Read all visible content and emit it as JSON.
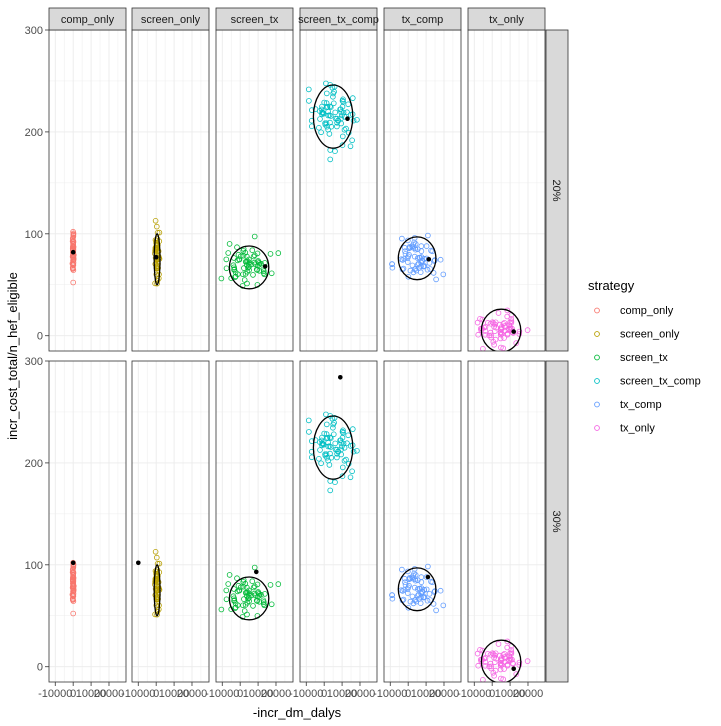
{
  "chart_data": {
    "type": "scatter",
    "xlabel": "-incr_dm_dalys",
    "ylabel": "incr_cost_total/n_hef_eligible",
    "ylim": [
      -15,
      300
    ],
    "yticks": [
      0,
      100,
      200,
      300
    ],
    "xlim": [
      -13500,
      29500
    ],
    "xticks": [
      -10000,
      0,
      10000,
      20000
    ],
    "xtick_labels": [
      "-10000",
      "0",
      "10000",
      "20000"
    ],
    "grid": true,
    "legend": {
      "title": "strategy",
      "position": "right",
      "entries": [
        {
          "label": "comp_only",
          "color": "#F8766D"
        },
        {
          "label": "screen_only",
          "color": "#B79F00"
        },
        {
          "label": "screen_tx",
          "color": "#00BA38"
        },
        {
          "label": "screen_tx_comp",
          "color": "#00BFC4"
        },
        {
          "label": "tx_comp",
          "color": "#619CFF"
        },
        {
          "label": "tx_only",
          "color": "#F564E3"
        }
      ]
    },
    "facet_cols": [
      "comp_only",
      "screen_only",
      "screen_tx",
      "screen_tx_comp",
      "tx_comp",
      "tx_only"
    ],
    "facet_rows": [
      "20%",
      "30%"
    ],
    "clouds": {
      "comp_only": {
        "cx": 0,
        "cy": 82,
        "sx": 150,
        "sy": 11,
        "n": 60,
        "ellipse": false
      },
      "screen_only": {
        "cx": 500,
        "cy": 75,
        "sx": 700,
        "sy": 13,
        "n": 60,
        "ellipse": true,
        "ex": 1600,
        "ey": 25
      },
      "screen_tx": {
        "cx": 5000,
        "cy": 67,
        "sx": 7000,
        "sy": 10,
        "n": 70,
        "ellipse": true,
        "ex": 11000,
        "ey": 21
      },
      "screen_tx_comp": {
        "cx": 5000,
        "cy": 215,
        "sx": 6000,
        "sy": 14,
        "n": 80,
        "ellipse": true,
        "ex": 11000,
        "ey": 31
      },
      "tx_comp": {
        "cx": 5000,
        "cy": 76,
        "sx": 6000,
        "sy": 10,
        "n": 70,
        "ellipse": true,
        "ex": 10500,
        "ey": 21
      },
      "tx_only": {
        "cx": 5000,
        "cy": 5,
        "sx": 6000,
        "sy": 8,
        "n": 70,
        "ellipse": true,
        "ex": 11000,
        "ey": 21
      }
    },
    "point_estimates": {
      "20%": {
        "comp_only": [
          0,
          82
        ],
        "screen_only": [
          0,
          77
        ],
        "screen_tx": [
          14000,
          68
        ],
        "screen_tx_comp": [
          13000,
          213
        ],
        "tx_comp": [
          11500,
          75
        ],
        "tx_only": [
          12000,
          4
        ]
      },
      "30%": {
        "comp_only": [
          0,
          102
        ],
        "screen_only": [
          -10000,
          102
        ],
        "screen_tx": [
          9000,
          93
        ],
        "screen_tx_comp": [
          9000,
          284
        ],
        "tx_comp": [
          11000,
          88
        ],
        "tx_only": [
          12000,
          -2
        ]
      }
    }
  }
}
